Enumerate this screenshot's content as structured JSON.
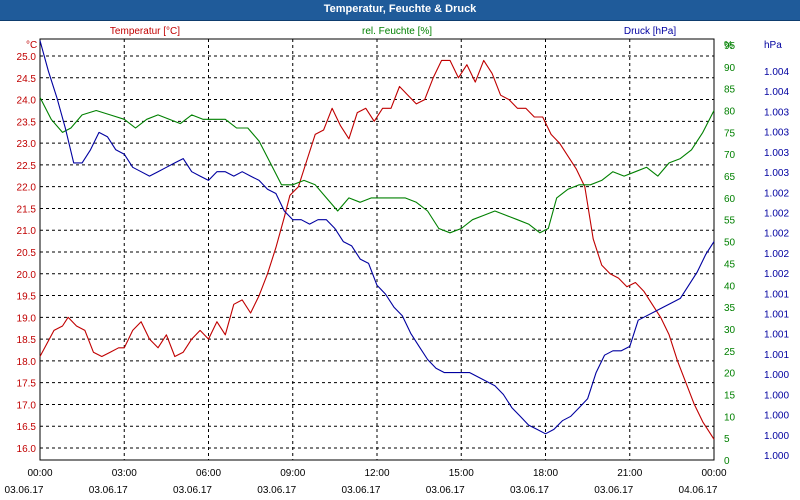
{
  "window": {
    "title": "Temperatur, Feuchte & Druck"
  },
  "chart_data": {
    "type": "line",
    "title": "Temperatur, Feuchte & Druck",
    "colors": {
      "temperature": "#c00000",
      "humidity": "#008000",
      "pressure": "#0000a0",
      "grid": "#000000"
    },
    "axes": {
      "left": {
        "unit_label": "°C",
        "range": [
          15.9,
          25.3
        ],
        "ticks": [
          "16.0",
          "16.5",
          "17.0",
          "17.5",
          "18.0",
          "18.5",
          "19.0",
          "19.5",
          "20.0",
          "20.5",
          "21.0",
          "21.5",
          "22.0",
          "22.5",
          "23.0",
          "23.5",
          "24.0",
          "24.5",
          "25.0"
        ]
      },
      "right_humidity": {
        "unit_label": "%",
        "range": [
          0,
          97
        ],
        "ticks": [
          "0",
          "5",
          "10",
          "15",
          "20",
          "25",
          "30",
          "35",
          "40",
          "45",
          "50",
          "55",
          "60",
          "65",
          "70",
          "75",
          "80",
          "85",
          "90",
          "95"
        ]
      },
      "right_pressure": {
        "unit_label": "hPa",
        "ticks": [
          "1.000",
          "1.000",
          "1.000",
          "1.000",
          "1.000",
          "1.001",
          "1.001",
          "1.001",
          "1.001",
          "1.002",
          "1.002",
          "1.002",
          "1.002",
          "1.002",
          "1.003",
          "1.003",
          "1.003",
          "1.003",
          "1.004",
          "1.004"
        ]
      },
      "x": {
        "range_hours": [
          0,
          24
        ],
        "times": [
          "00:00",
          "03:00",
          "06:00",
          "09:00",
          "12:00",
          "15:00",
          "18:00",
          "21:00",
          "00:00"
        ],
        "dates": [
          "03.06.17",
          "03.06.17",
          "03.06.17",
          "03.06.17",
          "03.06.17",
          "03.06.17",
          "03.06.17",
          "03.06.17",
          "04.06.17"
        ]
      }
    },
    "grid": true,
    "legend_position": "top",
    "series": [
      {
        "name": "Temperatur [°C]",
        "axis": "left",
        "x": [
          0,
          0.5,
          0.8,
          1,
          1.3,
          1.6,
          1.9,
          2.2,
          2.5,
          2.8,
          3.0,
          3.3,
          3.6,
          3.9,
          4.2,
          4.5,
          4.8,
          5.1,
          5.4,
          5.7,
          6.0,
          6.3,
          6.6,
          6.9,
          7.2,
          7.5,
          7.8,
          8.1,
          8.4,
          8.7,
          8.9,
          9.2,
          9.5,
          9.8,
          10.1,
          10.4,
          10.7,
          11.0,
          11.3,
          11.6,
          11.9,
          12.2,
          12.5,
          12.8,
          13.1,
          13.4,
          13.7,
          14.0,
          14.3,
          14.6,
          14.9,
          15.2,
          15.5,
          15.8,
          16.1,
          16.4,
          16.7,
          17.0,
          17.3,
          17.6,
          17.9,
          18.2,
          18.5,
          18.8,
          19.1,
          19.4,
          19.7,
          20.0,
          20.3,
          20.6,
          20.9,
          21.2,
          21.5,
          21.8,
          22.1,
          22.4,
          22.7,
          23.0,
          23.3,
          23.6,
          23.8,
          24.0
        ],
        "values": [
          18.1,
          18.7,
          18.8,
          19.0,
          18.8,
          18.7,
          18.2,
          18.1,
          18.2,
          18.3,
          18.3,
          18.7,
          18.9,
          18.5,
          18.3,
          18.6,
          18.1,
          18.2,
          18.5,
          18.7,
          18.5,
          18.9,
          18.6,
          19.3,
          19.4,
          19.1,
          19.5,
          20.0,
          20.6,
          21.3,
          21.8,
          22.0,
          22.6,
          23.2,
          23.3,
          23.8,
          23.4,
          23.1,
          23.7,
          23.8,
          23.5,
          23.8,
          23.8,
          24.3,
          24.1,
          23.9,
          24.0,
          24.5,
          24.9,
          24.9,
          24.5,
          24.8,
          24.4,
          24.9,
          24.6,
          24.1,
          24.0,
          23.8,
          23.8,
          23.6,
          23.6,
          23.2,
          23.0,
          22.7,
          22.4,
          22.0,
          20.8,
          20.2,
          20.0,
          19.9,
          19.7,
          19.8,
          19.6,
          19.3,
          19.0,
          18.6,
          18.0,
          17.5,
          17.0,
          16.6,
          16.4,
          16.2
        ]
      },
      {
        "name": "rel. Feuchte [%]",
        "axis": "right_humidity",
        "x": [
          0,
          0.4,
          0.8,
          1.1,
          1.5,
          2.0,
          2.5,
          3.0,
          3.4,
          3.8,
          4.2,
          4.6,
          5.0,
          5.4,
          5.8,
          6.2,
          6.6,
          7.0,
          7.4,
          7.8,
          8.2,
          8.6,
          9.0,
          9.4,
          9.8,
          10.2,
          10.6,
          11.0,
          11.4,
          11.8,
          12.2,
          12.6,
          13.0,
          13.4,
          13.8,
          14.2,
          14.6,
          15.0,
          15.4,
          15.8,
          16.2,
          16.6,
          17.0,
          17.4,
          17.8,
          18.1,
          18.4,
          18.8,
          19.2,
          19.6,
          20.0,
          20.4,
          20.8,
          21.2,
          21.6,
          22.0,
          22.4,
          22.8,
          23.2,
          23.6,
          24.0
        ],
        "values": [
          83,
          78,
          75,
          76,
          79,
          80,
          79,
          78,
          76,
          78,
          79,
          78,
          77,
          79,
          78,
          78,
          78,
          76,
          76,
          73,
          68,
          63,
          63,
          64,
          63,
          60,
          57,
          60,
          59,
          60,
          60,
          60,
          60,
          59,
          57,
          53,
          52,
          53,
          55,
          56,
          57,
          56,
          55,
          54,
          52,
          53,
          60,
          62,
          63,
          63,
          64,
          66,
          65,
          66,
          67,
          65,
          68,
          69,
          71,
          75,
          80
        ]
      },
      {
        "name": "Druck [hPa]",
        "axis": "right_humidity",
        "x": [
          0,
          0.3,
          0.6,
          0.9,
          1.2,
          1.5,
          1.8,
          2.1,
          2.4,
          2.7,
          3.0,
          3.3,
          3.6,
          3.9,
          4.2,
          4.5,
          4.8,
          5.1,
          5.4,
          5.7,
          6.0,
          6.3,
          6.6,
          6.9,
          7.2,
          7.5,
          7.8,
          8.1,
          8.4,
          8.7,
          9.0,
          9.3,
          9.6,
          9.9,
          10.2,
          10.5,
          10.8,
          11.1,
          11.4,
          11.7,
          12.0,
          12.3,
          12.6,
          12.9,
          13.2,
          13.5,
          13.8,
          14.1,
          14.4,
          14.7,
          15.0,
          15.3,
          15.6,
          15.9,
          16.2,
          16.5,
          16.8,
          17.1,
          17.4,
          17.7,
          18.0,
          18.3,
          18.6,
          18.9,
          19.2,
          19.5,
          19.8,
          20.1,
          20.4,
          20.7,
          21.0,
          21.3,
          21.6,
          21.9,
          22.2,
          22.5,
          22.8,
          23.1,
          23.4,
          23.7,
          24.0
        ],
        "values": [
          96,
          89,
          83,
          76,
          68,
          68,
          71,
          75,
          74,
          71,
          70,
          67,
          66,
          65,
          66,
          67,
          68,
          69,
          66,
          65,
          64,
          66,
          66,
          65,
          66,
          65,
          64,
          62,
          61,
          57,
          55,
          55,
          54,
          55,
          55,
          53,
          50,
          49,
          46,
          45,
          40,
          38,
          35,
          33,
          29,
          26,
          23,
          21,
          20,
          20,
          20,
          20,
          19,
          18,
          17,
          15,
          12,
          10,
          8,
          7,
          6,
          7,
          9,
          10,
          12,
          14,
          20,
          24,
          25,
          25,
          26,
          32,
          33,
          34,
          35,
          36,
          37,
          40,
          43,
          47,
          50
        ]
      }
    ]
  }
}
